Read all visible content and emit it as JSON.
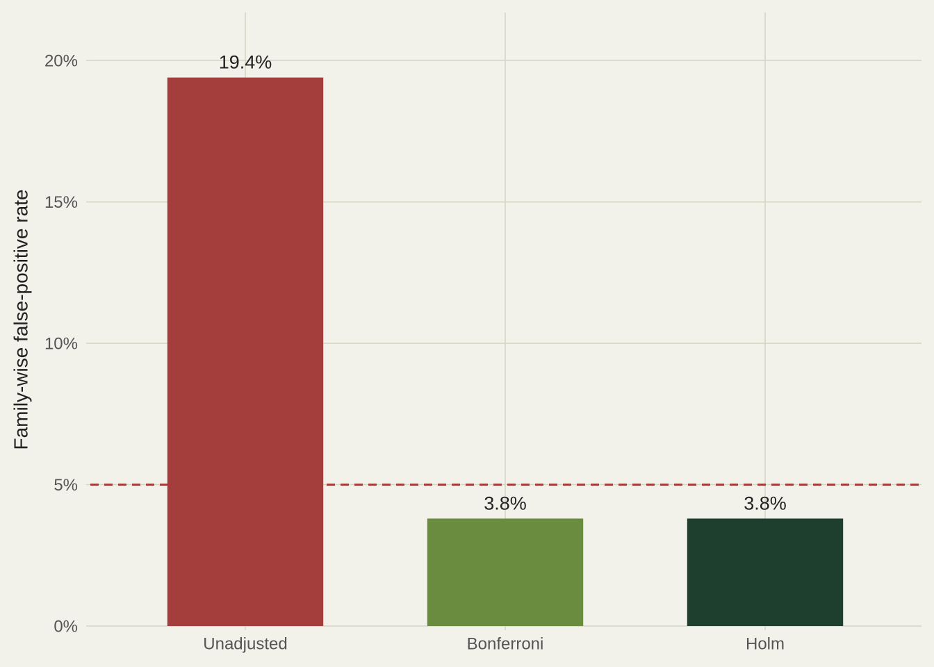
{
  "chart_data": {
    "type": "bar",
    "y_label": "Family-wise false-positive rate",
    "categories": [
      "Unadjusted",
      "Bonferroni",
      "Holm"
    ],
    "values": [
      19.4,
      3.8,
      3.8
    ],
    "value_labels": [
      "19.4%",
      "3.8%",
      "3.8%"
    ],
    "colors": [
      "#a33e3d",
      "#6a8c3e",
      "#1f3f2e"
    ],
    "ylim": [
      0,
      21.7
    ],
    "yticks": [
      {
        "value": 0,
        "label": "0%"
      },
      {
        "value": 5,
        "label": "5%"
      },
      {
        "value": 10,
        "label": "10%"
      },
      {
        "value": 15,
        "label": "15%"
      },
      {
        "value": 20,
        "label": "20%"
      }
    ],
    "reference_line": {
      "value": 5,
      "color": "#a33e3d",
      "style": "dashed"
    },
    "grid": true
  }
}
